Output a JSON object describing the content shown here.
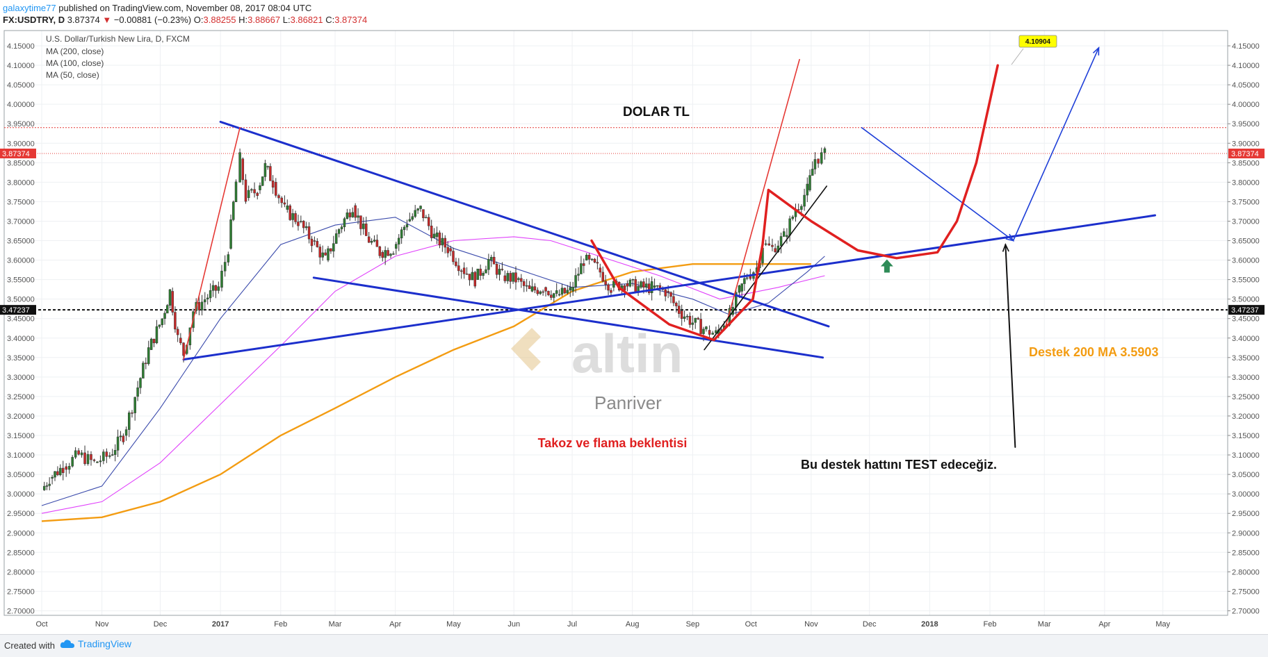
{
  "header": {
    "user": "galaxytime77",
    "published": "published on TradingView.com, November 08, 2017 08:04 UTC",
    "symbol": "FX:USDTRY, D",
    "last": "3.87374",
    "change": "−0.00881 (−0.23%)",
    "o_label": "O:",
    "o": "3.88255",
    "h_label": "H:",
    "h": "3.88667",
    "l_label": "L:",
    "l": "3.86821",
    "c_label": "C:",
    "c": "3.87374"
  },
  "footer": {
    "created": "Created with",
    "brand": "TradingView"
  },
  "chart_data": {
    "type": "line",
    "title": "U.S. Dollar/Turkish New Lira, D, FXCM",
    "legend": [
      "MA (200, close)",
      "MA (100, close)",
      "MA (50, close)"
    ],
    "ylim": [
      2.69,
      4.19
    ],
    "y_ticks": [
      "4.15000",
      "4.10000",
      "4.05000",
      "4.00000",
      "3.95000",
      "3.90000",
      "3.85000",
      "3.80000",
      "3.75000",
      "3.70000",
      "3.65000",
      "3.60000",
      "3.55000",
      "3.50000",
      "3.45000",
      "3.40000",
      "3.35000",
      "3.30000",
      "3.25000",
      "3.20000",
      "3.15000",
      "3.10000",
      "3.05000",
      "3.00000",
      "2.95000",
      "2.90000",
      "2.85000",
      "2.80000",
      "2.75000",
      "2.70000"
    ],
    "x_ticks": [
      "Oct",
      "Nov",
      "Dec",
      "2017",
      "Feb",
      "Mar",
      "Apr",
      "May",
      "Jun",
      "Jul",
      "Aug",
      "Sep",
      "Oct",
      "Nov",
      "Dec",
      "2018",
      "Feb",
      "Mar",
      "Apr",
      "May"
    ],
    "last_price": {
      "value": 3.87374,
      "label": "3.87374",
      "color": "#e53935"
    },
    "horizontal_level": {
      "value": 3.47237,
      "label": "3.47237"
    },
    "resistance_level": 3.94,
    "price_path": [
      [
        "2016-10-01",
        3.01
      ],
      [
        "2016-10-05",
        3.04
      ],
      [
        "2016-10-12",
        3.07
      ],
      [
        "2016-10-20",
        3.1
      ],
      [
        "2016-10-28",
        3.08
      ],
      [
        "2016-11-05",
        3.1
      ],
      [
        "2016-11-12",
        3.15
      ],
      [
        "2016-11-18",
        3.25
      ],
      [
        "2016-11-25",
        3.37
      ],
      [
        "2016-12-02",
        3.45
      ],
      [
        "2016-12-06",
        3.52
      ],
      [
        "2016-12-10",
        3.4
      ],
      [
        "2016-12-13",
        3.36
      ],
      [
        "2016-12-18",
        3.47
      ],
      [
        "2016-12-24",
        3.5
      ],
      [
        "2016-12-31",
        3.53
      ],
      [
        "2017-01-05",
        3.63
      ],
      [
        "2017-01-09",
        3.8
      ],
      [
        "2017-01-11",
        3.86
      ],
      [
        "2017-01-14",
        3.76
      ],
      [
        "2017-01-20",
        3.78
      ],
      [
        "2017-01-24",
        3.84
      ],
      [
        "2017-01-28",
        3.8
      ],
      [
        "2017-02-03",
        3.73
      ],
      [
        "2017-02-10",
        3.7
      ],
      [
        "2017-02-17",
        3.65
      ],
      [
        "2017-02-24",
        3.6
      ],
      [
        "2017-03-03",
        3.68
      ],
      [
        "2017-03-10",
        3.74
      ],
      [
        "2017-03-17",
        3.66
      ],
      [
        "2017-03-24",
        3.62
      ],
      [
        "2017-03-31",
        3.63
      ],
      [
        "2017-04-07",
        3.7
      ],
      [
        "2017-04-14",
        3.73
      ],
      [
        "2017-04-21",
        3.66
      ],
      [
        "2017-04-28",
        3.63
      ],
      [
        "2017-05-05",
        3.58
      ],
      [
        "2017-05-12",
        3.55
      ],
      [
        "2017-05-19",
        3.6
      ],
      [
        "2017-05-26",
        3.56
      ],
      [
        "2017-06-02",
        3.55
      ],
      [
        "2017-06-09",
        3.52
      ],
      [
        "2017-06-16",
        3.53
      ],
      [
        "2017-06-23",
        3.51
      ],
      [
        "2017-06-30",
        3.52
      ],
      [
        "2017-07-07",
        3.6
      ],
      [
        "2017-07-14",
        3.58
      ],
      [
        "2017-07-21",
        3.53
      ],
      [
        "2017-07-28",
        3.54
      ],
      [
        "2017-08-04",
        3.53
      ],
      [
        "2017-08-11",
        3.53
      ],
      [
        "2017-08-18",
        3.52
      ],
      [
        "2017-08-25",
        3.47
      ],
      [
        "2017-09-01",
        3.44
      ],
      [
        "2017-09-08",
        3.42
      ],
      [
        "2017-09-13",
        3.41
      ],
      [
        "2017-09-20",
        3.46
      ],
      [
        "2017-09-25",
        3.52
      ],
      [
        "2017-09-29",
        3.56
      ],
      [
        "2017-10-04",
        3.58
      ],
      [
        "2017-10-07",
        3.64
      ],
      [
        "2017-10-12",
        3.63
      ],
      [
        "2017-10-18",
        3.66
      ],
      [
        "2017-10-24",
        3.73
      ],
      [
        "2017-10-30",
        3.78
      ],
      [
        "2017-11-03",
        3.86
      ],
      [
        "2017-11-08",
        3.87
      ]
    ],
    "series": [
      {
        "name": "MA (200, close)",
        "color": "#f39c12",
        "points": [
          [
            "2016-10-01",
            2.93
          ],
          [
            "2016-11-01",
            2.94
          ],
          [
            "2016-12-01",
            2.98
          ],
          [
            "2017-01-01",
            3.05
          ],
          [
            "2017-02-01",
            3.15
          ],
          [
            "2017-03-01",
            3.22
          ],
          [
            "2017-04-01",
            3.3
          ],
          [
            "2017-05-01",
            3.37
          ],
          [
            "2017-06-01",
            3.43
          ],
          [
            "2017-07-01",
            3.52
          ],
          [
            "2017-08-01",
            3.57
          ],
          [
            "2017-09-01",
            3.59
          ],
          [
            "2017-10-01",
            3.59
          ],
          [
            "2017-11-01",
            3.59
          ]
        ]
      },
      {
        "name": "MA (100, close)",
        "color": "#e040fb",
        "points": [
          [
            "2016-10-01",
            2.95
          ],
          [
            "2016-11-01",
            2.98
          ],
          [
            "2016-12-01",
            3.08
          ],
          [
            "2017-01-01",
            3.23
          ],
          [
            "2017-02-01",
            3.38
          ],
          [
            "2017-03-01",
            3.52
          ],
          [
            "2017-04-01",
            3.61
          ],
          [
            "2017-05-01",
            3.65
          ],
          [
            "2017-06-01",
            3.66
          ],
          [
            "2017-06-20",
            3.65
          ],
          [
            "2017-07-15",
            3.61
          ],
          [
            "2017-08-15",
            3.56
          ],
          [
            "2017-09-15",
            3.5
          ],
          [
            "2017-10-15",
            3.53
          ],
          [
            "2017-11-08",
            3.56
          ]
        ]
      },
      {
        "name": "MA (50, close)",
        "color": "#3949ab",
        "points": [
          [
            "2016-10-01",
            2.97
          ],
          [
            "2016-11-01",
            3.02
          ],
          [
            "2016-12-01",
            3.22
          ],
          [
            "2017-01-01",
            3.45
          ],
          [
            "2017-02-01",
            3.64
          ],
          [
            "2017-03-01",
            3.69
          ],
          [
            "2017-04-01",
            3.71
          ],
          [
            "2017-05-01",
            3.63
          ],
          [
            "2017-06-01",
            3.58
          ],
          [
            "2017-07-01",
            3.53
          ],
          [
            "2017-08-01",
            3.54
          ],
          [
            "2017-09-01",
            3.5
          ],
          [
            "2017-09-20",
            3.46
          ],
          [
            "2017-10-10",
            3.49
          ],
          [
            "2017-10-30",
            3.57
          ],
          [
            "2017-11-08",
            3.61
          ]
        ]
      }
    ],
    "drawings": {
      "blue_lines": [
        [
          [
            "2017-01-01",
            3.955
          ],
          [
            "2017-11-10",
            3.43
          ]
        ],
        [
          [
            "2017-02-18",
            3.555
          ],
          [
            "2017-11-07",
            3.35
          ]
        ],
        [
          [
            "2016-12-13",
            3.345
          ],
          [
            "2018-04-27",
            3.715
          ]
        ],
        [
          [
            "2017-11-27",
            3.94
          ],
          [
            "2018-02-13",
            3.65
          ]
        ],
        [
          [
            "2018-02-13",
            3.65
          ],
          [
            "2018-03-29",
            4.145
          ]
        ]
      ],
      "red_lines": [
        [
          [
            "2016-12-13",
            3.345
          ],
          [
            "2017-01-11",
            3.94
          ]
        ],
        [
          [
            "2017-09-18",
            3.43
          ],
          [
            "2017-10-26",
            4.115
          ]
        ]
      ],
      "black_lines": [
        [
          [
            "2017-09-07",
            3.37
          ],
          [
            "2017-11-09",
            3.79
          ]
        ],
        [
          [
            "2018-02-14",
            3.12
          ],
          [
            "2018-02-09",
            3.64
          ]
        ]
      ],
      "red_curves": [
        [
          [
            "2017-07-11",
            3.65
          ],
          [
            "2017-07-25",
            3.53
          ],
          [
            "2017-08-20",
            3.435
          ],
          [
            "2017-09-12",
            3.395
          ],
          [
            "2017-10-02",
            3.5
          ],
          [
            "2017-10-07",
            3.64
          ],
          [
            "2017-10-10",
            3.78
          ]
        ],
        [
          [
            "2017-10-10",
            3.78
          ],
          [
            "2017-11-01",
            3.7
          ],
          [
            "2017-11-25",
            3.625
          ],
          [
            "2017-12-15",
            3.605
          ],
          [
            "2018-01-05",
            3.62
          ],
          [
            "2018-01-15",
            3.7
          ],
          [
            "2018-01-25",
            3.85
          ],
          [
            "2018-02-05",
            4.1
          ]
        ]
      ],
      "green_arrow": [
        "2017-12-10",
        3.6
      ]
    },
    "annotations": {
      "dolar": "DOLAR TL",
      "takoz": "Takoz ve flama beklentisi",
      "test": "Bu destek hattını TEST edeceğiz.",
      "destek": "Destek  200 MA  3.5903",
      "callout": "4.10904",
      "wm_brand": "altin",
      "wm_sub": "Panriver"
    }
  }
}
